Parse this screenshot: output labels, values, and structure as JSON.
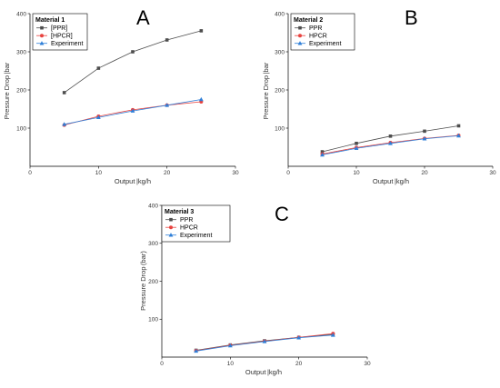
{
  "chart_data": [
    {
      "type": "line",
      "panel_label": "A",
      "legend_title": "Material 1",
      "xlabel": "Output |kg/h",
      "ylabel": "Pressure Drop |bar",
      "xlim": [
        0,
        30
      ],
      "ylim": [
        0,
        400
      ],
      "xticks": [
        "0",
        "10",
        "20",
        "30"
      ],
      "yticks": [
        "100",
        "200",
        "300",
        "400"
      ],
      "x": [
        5,
        10,
        15,
        20,
        25
      ],
      "series": [
        {
          "name": "[PPR]",
          "marker": "square",
          "color": "#4d4d4d",
          "values": [
            193,
            257,
            300,
            331,
            355
          ]
        },
        {
          "name": "[HPCR]",
          "marker": "circle",
          "color": "#e8433f",
          "values": [
            108,
            131,
            148,
            160,
            169
          ]
        },
        {
          "name": "Experiment",
          "marker": "triangle",
          "color": "#2f7fd8",
          "values": [
            110,
            128,
            145,
            160,
            175
          ]
        }
      ]
    },
    {
      "type": "line",
      "panel_label": "B",
      "legend_title": "Material 2",
      "xlabel": "Output |kg/h",
      "ylabel": "Pressure Drop |bar",
      "xlim": [
        0,
        30
      ],
      "ylim": [
        0,
        400
      ],
      "xticks": [
        "0",
        "10",
        "20",
        "30"
      ],
      "yticks": [
        "100",
        "200",
        "300",
        "400"
      ],
      "x": [
        5,
        10,
        15,
        20,
        25
      ],
      "series": [
        {
          "name": "PPR",
          "marker": "square",
          "color": "#4d4d4d",
          "values": [
            38,
            60,
            79,
            92,
            106
          ]
        },
        {
          "name": "HPCR",
          "marker": "circle",
          "color": "#e8433f",
          "values": [
            32,
            49,
            62,
            73,
            81
          ]
        },
        {
          "name": "Experiment",
          "marker": "triangle",
          "color": "#2f7fd8",
          "values": [
            30,
            47,
            60,
            72,
            80
          ]
        }
      ]
    },
    {
      "type": "line",
      "panel_label": "C",
      "legend_title": "Material 3",
      "xlabel": "Output |kg/h",
      "ylabel": "Pressure Drop (bar)",
      "xlim": [
        0,
        30
      ],
      "ylim": [
        0,
        400
      ],
      "xticks": [
        "0",
        "10",
        "20",
        "30"
      ],
      "yticks": [
        "100",
        "200",
        "300",
        "400"
      ],
      "x": [
        5,
        10,
        15,
        20,
        25
      ],
      "series": [
        {
          "name": "PPR",
          "marker": "square",
          "color": "#4d4d4d",
          "values": [
            18,
            32,
            43,
            52,
            60
          ]
        },
        {
          "name": "HPCR",
          "marker": "circle",
          "color": "#e8433f",
          "values": [
            17,
            31,
            42,
            52,
            62
          ]
        },
        {
          "name": "Experiment",
          "marker": "triangle",
          "color": "#2f7fd8",
          "values": [
            16,
            30,
            41,
            51,
            58
          ]
        }
      ]
    }
  ]
}
